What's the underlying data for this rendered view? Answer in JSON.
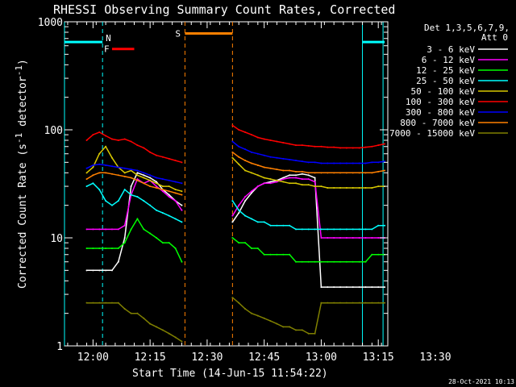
{
  "chart_data": {
    "type": "line",
    "title": "RHESSI Observing Summary Count Rates, Corrected",
    "xlabel": "Start Time (14-Jun-15 11:54:22)",
    "ylabel_main": "Corrected Count Rate (s",
    "ylabel_sup1": "-1",
    "ylabel_mid": " detector",
    "ylabel_sup2": "-1",
    "ylabel_end": ")",
    "xlim": [
      -7,
      95
    ],
    "ylim": [
      1,
      1000
    ],
    "yscale": "log",
    "x_ticks": [
      {
        "value": 2,
        "label": "12:00"
      },
      {
        "value": 20,
        "label": "12:15"
      },
      {
        "value": 38,
        "label": "12:30"
      },
      {
        "value": 56,
        "label": "12:45"
      },
      {
        "value": 74,
        "label": "13:00"
      },
      {
        "value": 92,
        "label": "13:15"
      },
      {
        "value": 110,
        "label": "13:30"
      }
    ],
    "y_ticks": [
      {
        "value": 1,
        "label": "1"
      },
      {
        "value": 10,
        "label": "10"
      },
      {
        "value": 100,
        "label": "100"
      },
      {
        "value": 1000,
        "label": "1000"
      }
    ],
    "legend_header": [
      "Det 1,3,5,6,7,9,",
      "Att 0"
    ],
    "timestamp": "28-Oct-2021 10:13",
    "series": [
      {
        "name": "3 - 6 keV",
        "color": "#ffffff",
        "x": [
          0,
          2,
          4,
          6,
          8,
          10,
          12,
          14,
          16,
          18,
          20,
          22,
          24,
          26,
          28,
          30,
          46,
          48,
          50,
          52,
          54,
          56,
          58,
          60,
          62,
          64,
          66,
          68,
          70,
          72,
          74,
          76,
          78,
          80,
          82,
          84,
          86,
          88,
          90,
          92,
          94
        ],
        "y": [
          5,
          5,
          5,
          5,
          5,
          6,
          10,
          30,
          40,
          38,
          36,
          33,
          28,
          25,
          22,
          20,
          14,
          17,
          22,
          26,
          30,
          32,
          33,
          34,
          36,
          38,
          38,
          39,
          38,
          36,
          3.5,
          3.5,
          3.5,
          3.5,
          3.5,
          3.5,
          3.5,
          3.5,
          3.5,
          3.5,
          3.5
        ]
      },
      {
        "name": "6 - 12 keV",
        "color": "#ff00ff",
        "x": [
          0,
          2,
          4,
          6,
          8,
          10,
          12,
          14,
          16,
          18,
          20,
          22,
          24,
          26,
          28,
          30,
          46,
          48,
          50,
          52,
          54,
          56,
          58,
          60,
          62,
          64,
          66,
          68,
          70,
          72,
          74,
          76,
          78,
          80,
          82,
          84,
          86,
          88,
          90,
          92,
          94
        ],
        "y": [
          12,
          12,
          12,
          12,
          12,
          12,
          13,
          25,
          35,
          32,
          34,
          30,
          27,
          24,
          22,
          18,
          16,
          20,
          24,
          27,
          30,
          32,
          32,
          33,
          35,
          36,
          36,
          35,
          35,
          33,
          10,
          10,
          10,
          10,
          10,
          10,
          10,
          10,
          10,
          10,
          10
        ]
      },
      {
        "name": "12 - 25 keV",
        "color": "#00ff00",
        "x": [
          0,
          2,
          4,
          6,
          8,
          10,
          12,
          14,
          16,
          18,
          20,
          22,
          24,
          26,
          28,
          30,
          46,
          48,
          50,
          52,
          54,
          56,
          58,
          60,
          62,
          64,
          66,
          68,
          70,
          72,
          74,
          76,
          78,
          80,
          82,
          84,
          86,
          88,
          90,
          92,
          94
        ],
        "y": [
          8,
          8,
          8,
          8,
          8,
          8,
          9,
          12,
          15,
          12,
          11,
          10,
          9,
          9,
          8,
          6,
          10,
          9,
          9,
          8,
          8,
          7,
          7,
          7,
          7,
          7,
          6,
          6,
          6,
          6,
          6,
          6,
          6,
          6,
          6,
          6,
          6,
          6,
          7,
          7,
          7
        ]
      },
      {
        "name": "25 - 50 keV",
        "color": "#00ffff",
        "x": [
          0,
          2,
          4,
          6,
          8,
          10,
          12,
          14,
          16,
          18,
          20,
          22,
          24,
          26,
          28,
          30,
          46,
          48,
          50,
          52,
          54,
          56,
          58,
          60,
          62,
          64,
          66,
          68,
          70,
          72,
          74,
          76,
          78,
          80,
          82,
          84,
          86,
          88,
          90,
          92,
          94
        ],
        "y": [
          30,
          32,
          28,
          22,
          20,
          22,
          28,
          25,
          24,
          22,
          20,
          18,
          17,
          16,
          15,
          14,
          22,
          18,
          16,
          15,
          14,
          14,
          13,
          13,
          13,
          13,
          12,
          12,
          12,
          12,
          12,
          12,
          12,
          12,
          12,
          12,
          12,
          12,
          12,
          13,
          13
        ]
      },
      {
        "name": "50 - 100 keV",
        "color": "#d8c800",
        "x": [
          0,
          2,
          4,
          6,
          8,
          10,
          12,
          14,
          16,
          18,
          20,
          22,
          24,
          26,
          28,
          30,
          46,
          48,
          50,
          52,
          54,
          56,
          58,
          60,
          62,
          64,
          66,
          68,
          70,
          72,
          74,
          76,
          78,
          80,
          82,
          84,
          86,
          88,
          90,
          92,
          94
        ],
        "y": [
          40,
          45,
          60,
          70,
          55,
          45,
          40,
          42,
          38,
          36,
          34,
          32,
          30,
          30,
          28,
          27,
          55,
          48,
          42,
          40,
          38,
          36,
          35,
          34,
          33,
          32,
          32,
          31,
          31,
          30,
          30,
          29,
          29,
          29,
          29,
          29,
          29,
          29,
          29,
          30,
          30
        ]
      },
      {
        "name": "100 - 300 keV",
        "color": "#ff0000",
        "x": [
          0,
          2,
          4,
          6,
          8,
          10,
          12,
          14,
          16,
          18,
          20,
          22,
          24,
          26,
          28,
          30,
          46,
          48,
          50,
          52,
          54,
          56,
          58,
          60,
          62,
          64,
          66,
          68,
          70,
          72,
          74,
          76,
          78,
          80,
          82,
          84,
          86,
          88,
          90,
          92,
          94
        ],
        "y": [
          80,
          90,
          95,
          88,
          82,
          80,
          82,
          78,
          72,
          68,
          62,
          58,
          56,
          54,
          52,
          50,
          110,
          100,
          95,
          90,
          85,
          82,
          80,
          78,
          76,
          74,
          72,
          72,
          71,
          70,
          70,
          69,
          69,
          68,
          68,
          68,
          68,
          69,
          70,
          72,
          74
        ]
      },
      {
        "name": "300 - 800 keV",
        "color": "#0000ff",
        "x": [
          0,
          2,
          4,
          6,
          8,
          10,
          12,
          14,
          16,
          18,
          20,
          22,
          24,
          26,
          28,
          30,
          46,
          48,
          50,
          52,
          54,
          56,
          58,
          60,
          62,
          64,
          66,
          68,
          70,
          72,
          74,
          76,
          78,
          80,
          82,
          84,
          86,
          88,
          90,
          92,
          94
        ],
        "y": [
          44,
          47,
          48,
          47,
          46,
          45,
          44,
          43,
          42,
          40,
          38,
          36,
          35,
          34,
          33,
          32,
          78,
          70,
          66,
          62,
          60,
          58,
          56,
          55,
          54,
          53,
          52,
          51,
          50,
          50,
          49,
          49,
          49,
          49,
          49,
          49,
          49,
          49,
          50,
          50,
          51
        ]
      },
      {
        "name": "800 - 7000 keV",
        "color": "#ff8000",
        "x": [
          0,
          2,
          4,
          6,
          8,
          10,
          12,
          14,
          16,
          18,
          20,
          22,
          24,
          26,
          28,
          30,
          46,
          48,
          50,
          52,
          54,
          56,
          58,
          60,
          62,
          64,
          66,
          68,
          70,
          72,
          74,
          76,
          78,
          80,
          82,
          84,
          86,
          88,
          90,
          92,
          94
        ],
        "y": [
          35,
          38,
          40,
          40,
          39,
          38,
          37,
          36,
          34,
          32,
          30,
          29,
          28,
          27,
          26,
          25,
          62,
          56,
          52,
          49,
          47,
          45,
          44,
          43,
          42,
          42,
          41,
          41,
          40,
          40,
          40,
          40,
          40,
          40,
          40,
          40,
          40,
          40,
          40,
          41,
          42
        ]
      },
      {
        "name": "7000 - 15000 keV",
        "color": "#808000",
        "x": [
          0,
          2,
          4,
          6,
          8,
          10,
          12,
          14,
          16,
          18,
          20,
          22,
          24,
          26,
          28,
          30,
          46,
          48,
          50,
          52,
          54,
          56,
          58,
          60,
          62,
          64,
          66,
          68,
          70,
          72,
          74,
          76,
          78,
          80,
          82,
          84,
          86,
          88,
          90,
          92,
          94
        ],
        "y": [
          2.5,
          2.5,
          2.5,
          2.5,
          2.5,
          2.5,
          2.2,
          2,
          2,
          1.8,
          1.6,
          1.5,
          1.4,
          1.3,
          1.2,
          1.1,
          2.8,
          2.5,
          2.2,
          2,
          1.9,
          1.8,
          1.7,
          1.6,
          1.5,
          1.5,
          1.4,
          1.4,
          1.3,
          1.3,
          2.5,
          2.5,
          2.5,
          2.5,
          2.5,
          2.5,
          2.5,
          2.5,
          2.5,
          2.5,
          2.5
        ]
      }
    ],
    "annotations": [
      {
        "label": "N",
        "color": "#00ffff",
        "kind": "night",
        "x_line": 5,
        "bars": [
          [
            -7,
            5
          ],
          [
            87,
            94
          ]
        ],
        "bar_y": 650
      },
      {
        "label": "F",
        "color": "#ff0000",
        "kind": "flare",
        "bars": [
          [
            8,
            15
          ]
        ],
        "bar_y": 560
      },
      {
        "label": "S",
        "color": "#ff8000",
        "kind": "saa",
        "x_lines": [
          31,
          46
        ],
        "bars": [
          [
            31,
            46
          ]
        ],
        "bar_y": 780
      }
    ],
    "extra_vlines": [
      {
        "x": -7,
        "color": "#00ffff"
      },
      {
        "x": 87,
        "color": "#00ffff"
      },
      {
        "x": 93.5,
        "color": "#00ffff"
      }
    ]
  }
}
